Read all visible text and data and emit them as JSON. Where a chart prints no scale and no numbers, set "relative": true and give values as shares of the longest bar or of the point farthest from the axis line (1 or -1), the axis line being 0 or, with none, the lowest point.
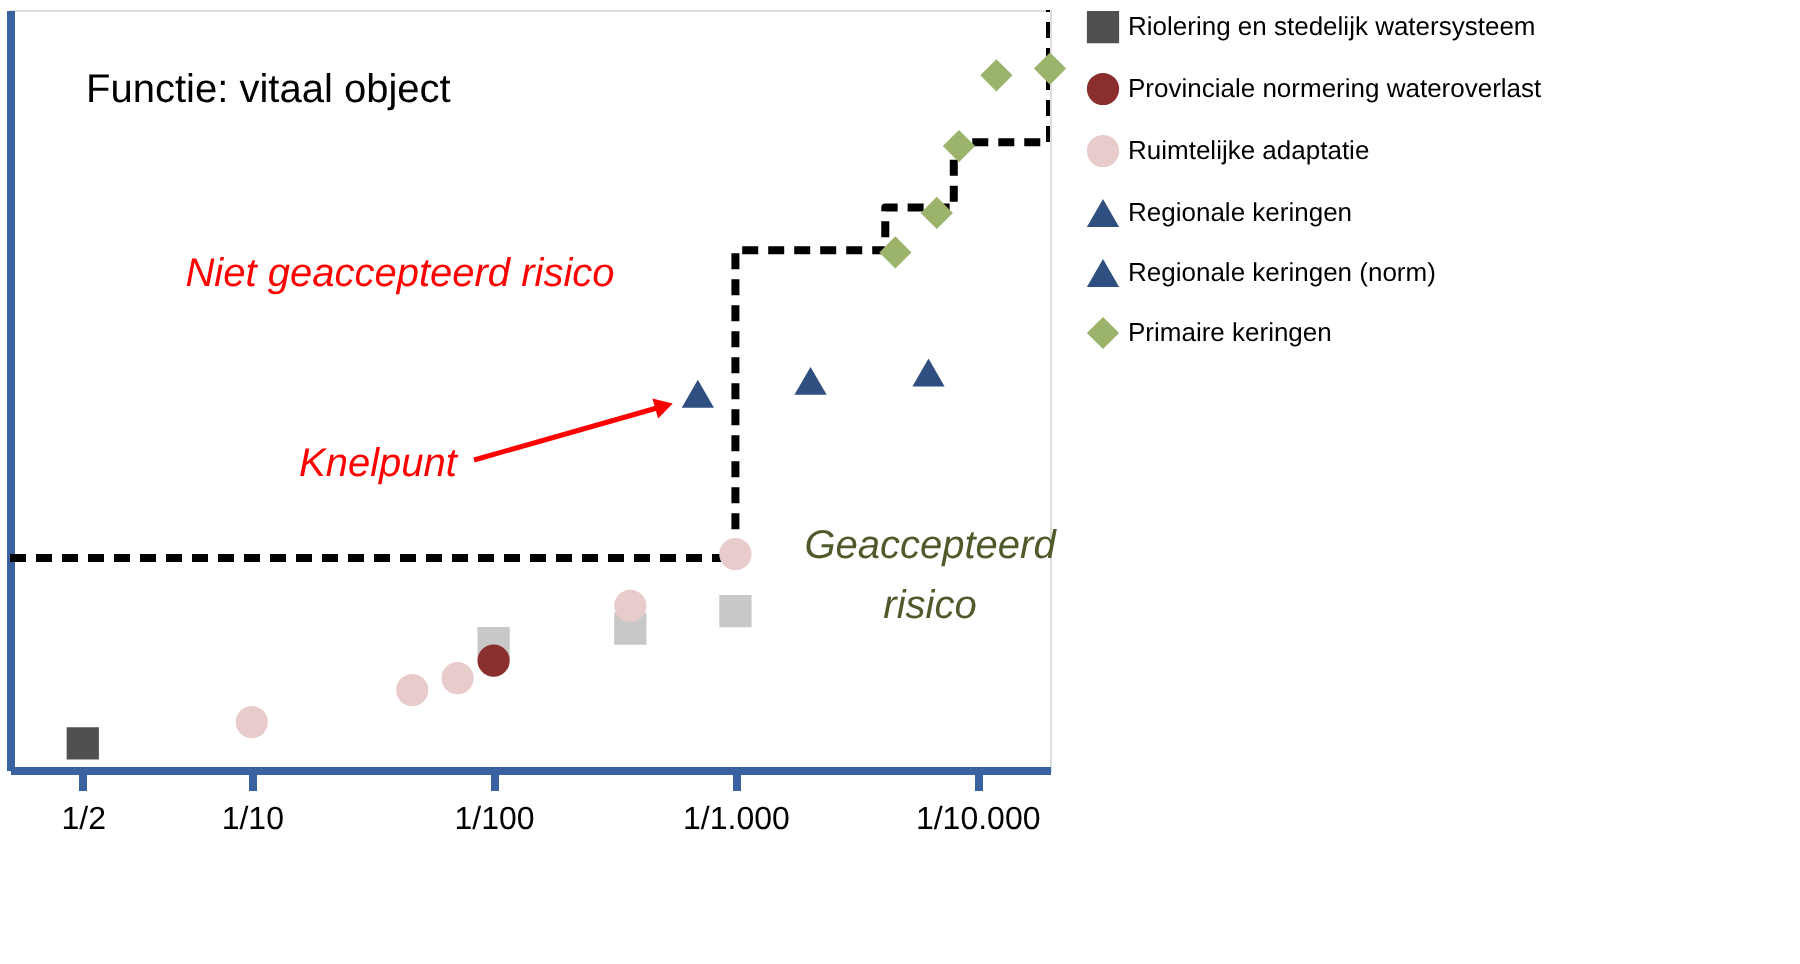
{
  "chart_data": {
    "type": "scatter",
    "relative": true,
    "log": "x",
    "xlim": [
      1,
      5e-05
    ],
    "xticks": [
      {
        "value": 0.5,
        "label": "1/2"
      },
      {
        "value": 0.1,
        "label": "1/10"
      },
      {
        "value": 0.01,
        "label": "1/100"
      },
      {
        "value": 0.001,
        "label": "1/1.000"
      },
      {
        "value": 0.0001,
        "label": "1/10.000"
      }
    ],
    "grid": false,
    "legend": "right",
    "annotations": [
      "Functie: vitaal object",
      "Niet geaccepteerd risico",
      "Geaccepteerd risico",
      "Knelpunt"
    ],
    "series": [
      {
        "type": "line",
        "color": "#000000",
        "line_style": "dashed",
        "x": [
          1,
          0.001,
          0.001,
          0.00024,
          0.00024,
          0.000125,
          0.000125,
          5e-05,
          5e-05
        ],
        "values": [
          0.279,
          0.279,
          0.684,
          0.684,
          0.74,
          0.74,
          0.826,
          0.826,
          1.0
        ]
      },
      {
        "type": "scatter",
        "marker": "square",
        "color": "#c8c8c8",
        "x": [
          0.01,
          0.00272,
          0.001
        ],
        "values": [
          0.167,
          0.186,
          0.209
        ]
      },
      {
        "name": "Riolering en stedelijk watersysteem",
        "type": "scatter",
        "marker": "square",
        "color": "#505050",
        "x": [
          0.5
        ],
        "values": [
          0.035
        ]
      },
      {
        "name": "Provinciale normering wateroverlast",
        "type": "scatter",
        "marker": "circle",
        "color": "#8b2e2e",
        "x": [
          0.01
        ],
        "values": [
          0.144
        ]
      },
      {
        "name": "Ruimtelijke adaptatie",
        "type": "scatter",
        "marker": "circle",
        "color": "#e8cccc",
        "x": [
          0.1,
          0.0217,
          0.0141,
          0.00272,
          0.001
        ],
        "values": [
          0.063,
          0.105,
          0.121,
          0.216,
          0.284
        ]
      },
      {
        "name": "Regionale keringen",
        "type": "scatter",
        "marker": "triangle",
        "color": "#2e4f7f",
        "x": [
          0.000489,
          0.000159
        ],
        "values": [
          0.512,
          0.523
        ]
      },
      {
        "name": "Regionale keringen  (norm)",
        "type": "scatter",
        "marker": "triangle",
        "color": "#2e4f7f",
        "x": [
          0.00143
        ],
        "values": [
          0.495
        ]
      },
      {
        "name": "Primaire keringen",
        "type": "scatter",
        "marker": "diamond",
        "color": "#9bb36b",
        "x": [
          0.000218,
          0.000147,
          0.000119,
          8.33e-05,
          5e-05
        ],
        "values": [
          0.681,
          0.733,
          0.821,
          0.914,
          0.923
        ]
      }
    ]
  }
}
